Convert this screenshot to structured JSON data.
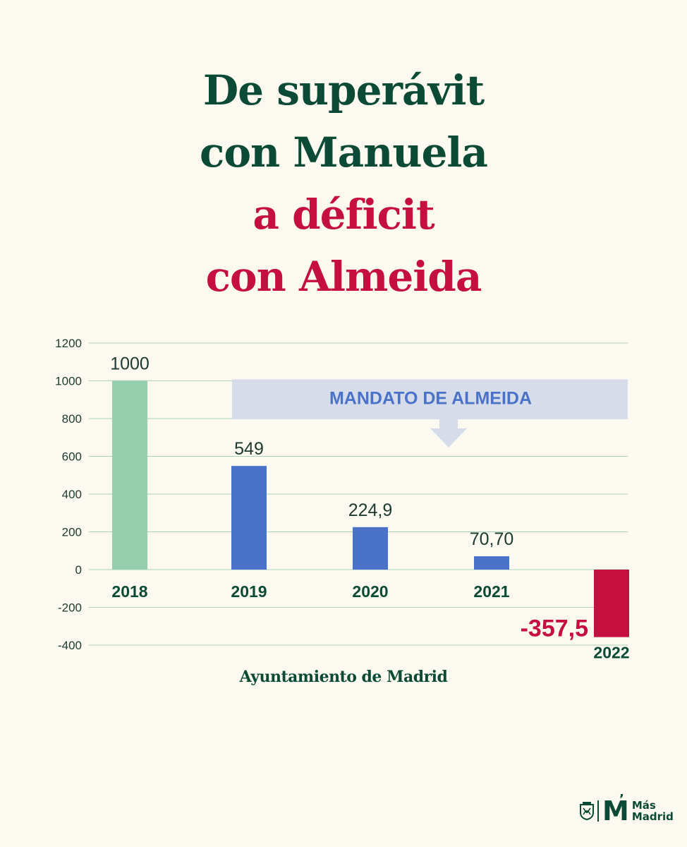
{
  "title": {
    "line1": "De superávit",
    "line2": "con Manuela",
    "line3": "a déficit",
    "line4": "con Almeida"
  },
  "colors": {
    "background": "#fcf9f1",
    "dark_green": "#0b4a35",
    "crimson": "#c5103f",
    "light_green": "#96cfad",
    "blue": "#4a72c8",
    "banner_bg": "#d6dcea",
    "banner_text": "#4a72c8",
    "grid": "#a6d4b8",
    "axis_text": "#1d3a30"
  },
  "chart_data": {
    "type": "bar",
    "categories": [
      "2018",
      "2019",
      "2020",
      "2021",
      "2022"
    ],
    "values": [
      1000,
      549,
      224.9,
      70.7,
      -357.5
    ],
    "value_labels": [
      "1000",
      "549",
      "224,9",
      "70,70",
      "-357,5"
    ],
    "bar_colors": [
      "#96cfad",
      "#4a72c8",
      "#4a72c8",
      "#4a72c8",
      "#c5103f"
    ],
    "y_ticks": [
      1200,
      1000,
      800,
      600,
      400,
      200,
      0,
      -200,
      -400
    ],
    "ylim": [
      -400,
      1200
    ],
    "grid": true,
    "annotation": "MANDATO DE ALMEIDA",
    "annotation_range": [
      "2019",
      "2022"
    ]
  },
  "source": "Ayuntamiento de Madrid",
  "logo": {
    "mark": "M",
    "word_line1": "Más",
    "word_line2": "Madrid",
    "crest_icon": "madrid-crest-icon"
  }
}
